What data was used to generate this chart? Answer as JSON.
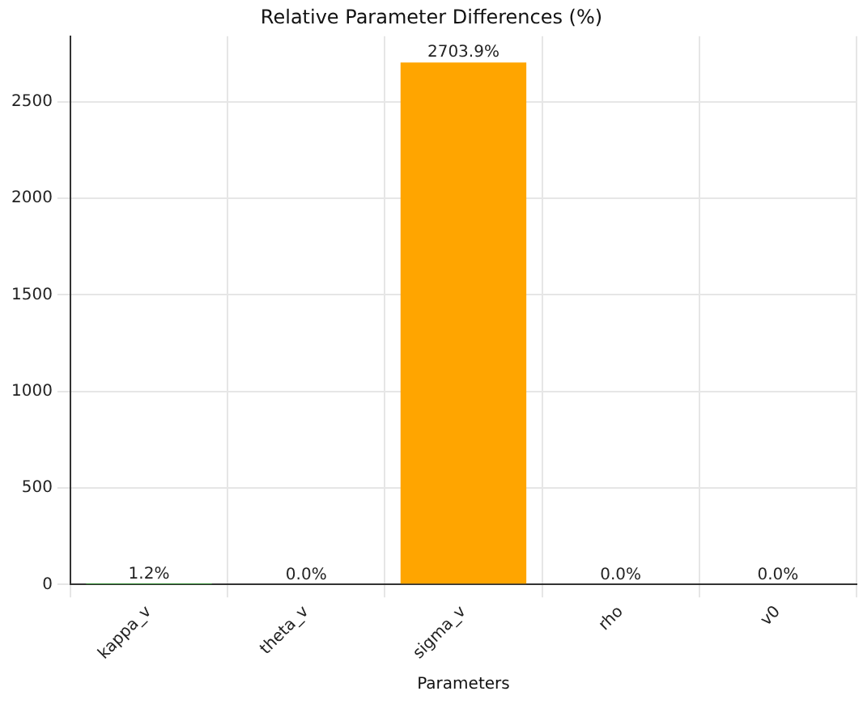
{
  "chart_data": {
    "type": "bar",
    "title": "Relative Parameter Differences (%)",
    "xlabel": "Parameters",
    "categories": [
      "kappa_v",
      "theta_v",
      "sigma_v",
      "rho",
      "v0"
    ],
    "values": [
      1.2,
      0.0,
      2703.9,
      0.0,
      0.0
    ],
    "colors": [
      "#2ca02c",
      "#1f77b4",
      "#ffa500",
      "#d62728",
      "#9467bd"
    ],
    "value_labels": [
      "1.2%",
      "0.0%",
      "2703.9%",
      "0.0%",
      "0.0%"
    ],
    "ylim": [
      0,
      2840
    ],
    "yticks": [
      0,
      500,
      1000,
      1500,
      2000,
      2500
    ],
    "grid": true,
    "legend": false
  }
}
